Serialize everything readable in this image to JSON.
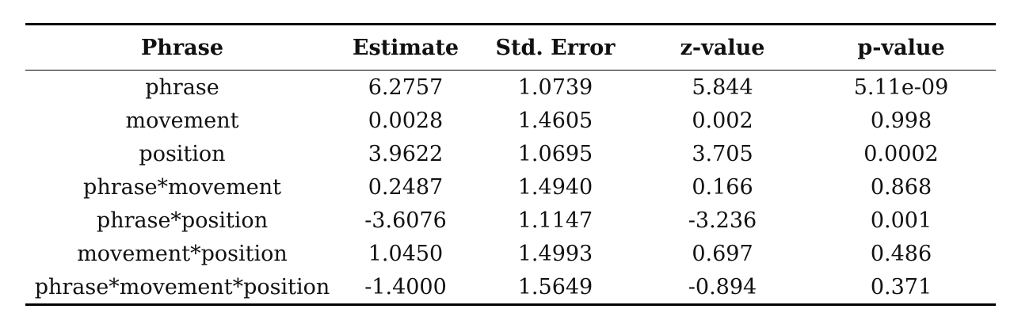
{
  "table": {
    "headers": [
      "Phrase",
      "Estimate",
      "Std. Error",
      "z-value",
      "p-value"
    ],
    "rows": [
      [
        "phrase",
        "6.2757",
        "1.0739",
        "5.844",
        "5.11e-09"
      ],
      [
        "movement",
        "0.0028",
        "1.4605",
        "0.002",
        "0.998"
      ],
      [
        "position",
        "3.9622",
        "1.0695",
        "3.705",
        "0.0002"
      ],
      [
        "phrase*movement",
        "0.2487",
        "1.4940",
        "0.166",
        "0.868"
      ],
      [
        "phrase*position",
        "-3.6076",
        "1.1147",
        "-3.236",
        "0.001"
      ],
      [
        "movement*position",
        "1.0450",
        "1.4993",
        "0.697",
        "0.486"
      ],
      [
        "phrase*movement*position",
        "-1.4000",
        "1.5649",
        "-0.894",
        "0.371"
      ]
    ]
  }
}
